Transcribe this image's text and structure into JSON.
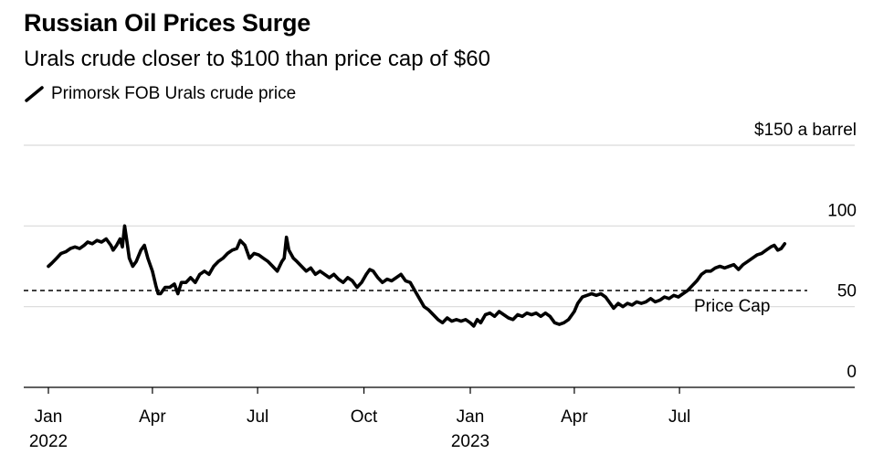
{
  "title": "Russian Oil Prices Surge",
  "subtitle": "Urals crude closer to $100 than price cap of $60",
  "legend": {
    "label": "Primorsk FOB Urals crude price",
    "color": "#000000"
  },
  "chart_data": {
    "type": "line",
    "title": "Russian Oil Prices Surge",
    "subtitle": "Urals crude closer to $100 than price cap of $60",
    "xlabel": "",
    "ylabel": "$150 a barrel",
    "ylim": [
      0,
      150
    ],
    "yticks": [
      {
        "value": 150,
        "label": "$150 a barrel"
      },
      {
        "value": 100,
        "label": "100"
      },
      {
        "value": 50,
        "label": "50"
      },
      {
        "value": 0,
        "label": "0"
      }
    ],
    "xlim": [
      "2022-01-01",
      "2023-10-31"
    ],
    "xticks": [
      {
        "date": "2022-01-01",
        "label": "Jan",
        "sublabel": "2022"
      },
      {
        "date": "2022-04-01",
        "label": "Apr",
        "sublabel": ""
      },
      {
        "date": "2022-07-01",
        "label": "Jul",
        "sublabel": ""
      },
      {
        "date": "2022-10-01",
        "label": "Oct",
        "sublabel": ""
      },
      {
        "date": "2023-01-01",
        "label": "Jan",
        "sublabel": "2023"
      },
      {
        "date": "2023-04-01",
        "label": "Apr",
        "sublabel": ""
      },
      {
        "date": "2023-07-01",
        "label": "Jul",
        "sublabel": ""
      }
    ],
    "reference_line": {
      "value": 60,
      "label": "Price Cap",
      "style": "dashed"
    },
    "grid": true,
    "series": [
      {
        "name": "Primorsk FOB Urals crude price",
        "color": "#000000",
        "points": [
          [
            "2022-01-01",
            75
          ],
          [
            "2022-01-04",
            77
          ],
          [
            "2022-01-08",
            80
          ],
          [
            "2022-01-12",
            83
          ],
          [
            "2022-01-16",
            84
          ],
          [
            "2022-01-20",
            86
          ],
          [
            "2022-01-24",
            87
          ],
          [
            "2022-01-28",
            86
          ],
          [
            "2022-02-01",
            88
          ],
          [
            "2022-02-04",
            90
          ],
          [
            "2022-02-08",
            89
          ],
          [
            "2022-02-12",
            91
          ],
          [
            "2022-02-16",
            90
          ],
          [
            "2022-02-20",
            92
          ],
          [
            "2022-02-24",
            88
          ],
          [
            "2022-02-26",
            85
          ],
          [
            "2022-03-01",
            88
          ],
          [
            "2022-03-04",
            92
          ],
          [
            "2022-03-06",
            87
          ],
          [
            "2022-03-08",
            100
          ],
          [
            "2022-03-10",
            90
          ],
          [
            "2022-03-12",
            80
          ],
          [
            "2022-03-15",
            75
          ],
          [
            "2022-03-18",
            78
          ],
          [
            "2022-03-22",
            85
          ],
          [
            "2022-03-25",
            88
          ],
          [
            "2022-03-28",
            80
          ],
          [
            "2022-04-01",
            72
          ],
          [
            "2022-04-04",
            63
          ],
          [
            "2022-04-06",
            58
          ],
          [
            "2022-04-08",
            58
          ],
          [
            "2022-04-12",
            62
          ],
          [
            "2022-04-16",
            62
          ],
          [
            "2022-04-20",
            64
          ],
          [
            "2022-04-23",
            58
          ],
          [
            "2022-04-26",
            65
          ],
          [
            "2022-04-30",
            65
          ],
          [
            "2022-05-04",
            68
          ],
          [
            "2022-05-08",
            65
          ],
          [
            "2022-05-12",
            70
          ],
          [
            "2022-05-16",
            72
          ],
          [
            "2022-05-20",
            70
          ],
          [
            "2022-05-24",
            75
          ],
          [
            "2022-05-28",
            78
          ],
          [
            "2022-06-01",
            80
          ],
          [
            "2022-06-05",
            83
          ],
          [
            "2022-06-09",
            85
          ],
          [
            "2022-06-13",
            86
          ],
          [
            "2022-06-16",
            91
          ],
          [
            "2022-06-20",
            88
          ],
          [
            "2022-06-24",
            80
          ],
          [
            "2022-06-28",
            83
          ],
          [
            "2022-07-02",
            82
          ],
          [
            "2022-07-06",
            80
          ],
          [
            "2022-07-10",
            78
          ],
          [
            "2022-07-14",
            75
          ],
          [
            "2022-07-18",
            72
          ],
          [
            "2022-07-22",
            78
          ],
          [
            "2022-07-24",
            80
          ],
          [
            "2022-07-26",
            93
          ],
          [
            "2022-07-28",
            85
          ],
          [
            "2022-08-01",
            80
          ],
          [
            "2022-08-04",
            78
          ],
          [
            "2022-08-08",
            75
          ],
          [
            "2022-08-12",
            72
          ],
          [
            "2022-08-16",
            74
          ],
          [
            "2022-08-20",
            70
          ],
          [
            "2022-08-24",
            72
          ],
          [
            "2022-08-28",
            70
          ],
          [
            "2022-09-01",
            68
          ],
          [
            "2022-09-05",
            70
          ],
          [
            "2022-09-09",
            67
          ],
          [
            "2022-09-13",
            65
          ],
          [
            "2022-09-17",
            68
          ],
          [
            "2022-09-21",
            66
          ],
          [
            "2022-09-25",
            62
          ],
          [
            "2022-09-29",
            65
          ],
          [
            "2022-10-03",
            70
          ],
          [
            "2022-10-06",
            73
          ],
          [
            "2022-10-09",
            72
          ],
          [
            "2022-10-13",
            68
          ],
          [
            "2022-10-17",
            65
          ],
          [
            "2022-10-21",
            67
          ],
          [
            "2022-10-25",
            66
          ],
          [
            "2022-10-29",
            68
          ],
          [
            "2022-11-02",
            70
          ],
          [
            "2022-11-06",
            66
          ],
          [
            "2022-11-10",
            65
          ],
          [
            "2022-11-14",
            60
          ],
          [
            "2022-11-18",
            55
          ],
          [
            "2022-11-22",
            50
          ],
          [
            "2022-11-26",
            48
          ],
          [
            "2022-11-30",
            45
          ],
          [
            "2022-12-04",
            42
          ],
          [
            "2022-12-08",
            40
          ],
          [
            "2022-12-12",
            43
          ],
          [
            "2022-12-16",
            41
          ],
          [
            "2022-12-20",
            42
          ],
          [
            "2022-12-24",
            41
          ],
          [
            "2022-12-28",
            42
          ],
          [
            "2023-01-01",
            40
          ],
          [
            "2023-01-04",
            38
          ],
          [
            "2023-01-07",
            42
          ],
          [
            "2023-01-10",
            40
          ],
          [
            "2023-01-14",
            45
          ],
          [
            "2023-01-18",
            46
          ],
          [
            "2023-01-22",
            44
          ],
          [
            "2023-01-26",
            47
          ],
          [
            "2023-01-30",
            45
          ],
          [
            "2023-02-03",
            43
          ],
          [
            "2023-02-07",
            42
          ],
          [
            "2023-02-11",
            45
          ],
          [
            "2023-02-15",
            44
          ],
          [
            "2023-02-19",
            46
          ],
          [
            "2023-02-23",
            45
          ],
          [
            "2023-02-27",
            46
          ],
          [
            "2023-03-03",
            44
          ],
          [
            "2023-03-07",
            46
          ],
          [
            "2023-03-11",
            44
          ],
          [
            "2023-03-15",
            40
          ],
          [
            "2023-03-19",
            39
          ],
          [
            "2023-03-23",
            40
          ],
          [
            "2023-03-27",
            42
          ],
          [
            "2023-04-01",
            47
          ],
          [
            "2023-04-04",
            52
          ],
          [
            "2023-04-08",
            56
          ],
          [
            "2023-04-12",
            57
          ],
          [
            "2023-04-16",
            58
          ],
          [
            "2023-04-20",
            57
          ],
          [
            "2023-04-24",
            58
          ],
          [
            "2023-04-28",
            56
          ],
          [
            "2023-05-02",
            52
          ],
          [
            "2023-05-05",
            49
          ],
          [
            "2023-05-09",
            52
          ],
          [
            "2023-05-13",
            50
          ],
          [
            "2023-05-17",
            52
          ],
          [
            "2023-05-21",
            51
          ],
          [
            "2023-05-25",
            53
          ],
          [
            "2023-05-29",
            52
          ],
          [
            "2023-06-02",
            53
          ],
          [
            "2023-06-06",
            55
          ],
          [
            "2023-06-10",
            53
          ],
          [
            "2023-06-14",
            54
          ],
          [
            "2023-06-18",
            56
          ],
          [
            "2023-06-22",
            55
          ],
          [
            "2023-06-26",
            57
          ],
          [
            "2023-06-30",
            56
          ],
          [
            "2023-07-04",
            58
          ],
          [
            "2023-07-08",
            60
          ],
          [
            "2023-07-12",
            63
          ],
          [
            "2023-07-16",
            66
          ],
          [
            "2023-07-20",
            70
          ],
          [
            "2023-07-24",
            72
          ],
          [
            "2023-07-28",
            72
          ],
          [
            "2023-08-01",
            74
          ],
          [
            "2023-08-05",
            75
          ],
          [
            "2023-08-09",
            74
          ],
          [
            "2023-08-13",
            75
          ],
          [
            "2023-08-17",
            76
          ],
          [
            "2023-08-21",
            73
          ],
          [
            "2023-08-25",
            76
          ],
          [
            "2023-08-29",
            78
          ],
          [
            "2023-09-02",
            80
          ],
          [
            "2023-09-06",
            82
          ],
          [
            "2023-09-10",
            83
          ],
          [
            "2023-09-14",
            85
          ],
          [
            "2023-09-18",
            87
          ],
          [
            "2023-09-21",
            88
          ],
          [
            "2023-09-24",
            85
          ],
          [
            "2023-09-27",
            86
          ],
          [
            "2023-09-30",
            89
          ]
        ]
      }
    ]
  }
}
